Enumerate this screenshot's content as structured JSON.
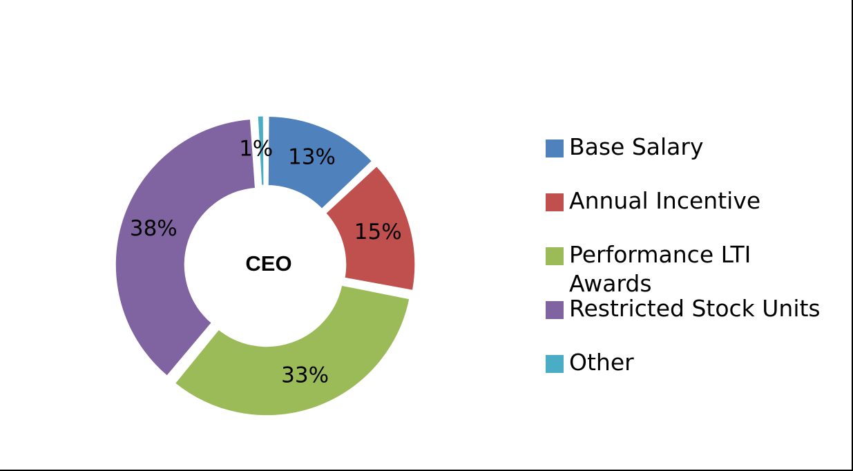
{
  "chart_data": {
    "type": "pie",
    "style": "donut",
    "center_label": "CEO",
    "categories": [
      "Base Salary",
      "Annual Incentive",
      "Performance LTI Awards",
      "Restricted Stock Units",
      "Other"
    ],
    "values": [
      13,
      15,
      33,
      38,
      1
    ],
    "data_labels": [
      "13%",
      "15%",
      "33%",
      "38%",
      "1%"
    ],
    "unit": "%",
    "colors": [
      "#4F81BD",
      "#C0504D",
      "#9BBB59",
      "#8064A2",
      "#4BACC6"
    ],
    "legend": {
      "position": "right",
      "items": [
        "Base Salary",
        "Annual Incentive",
        "Performance LTI Awards",
        "Restricted Stock Units",
        "Other"
      ]
    }
  }
}
